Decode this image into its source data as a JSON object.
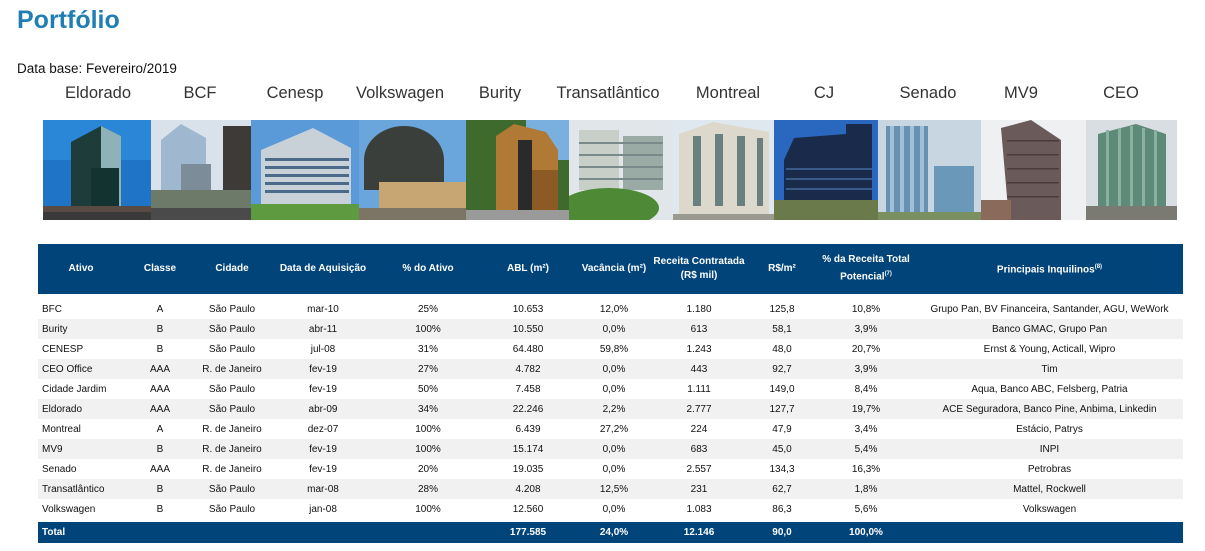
{
  "page": {
    "title": "Portfólio",
    "database_label": "Data base: Fevereiro/2019"
  },
  "buildings": [
    {
      "name": "Eldorado",
      "photo": "eldorado-building-photo"
    },
    {
      "name": "BCF",
      "photo": "bcf-building-photo"
    },
    {
      "name": "Cenesp",
      "photo": "cenesp-building-photo"
    },
    {
      "name": "Volkswagen",
      "photo": "volkswagen-building-photo"
    },
    {
      "name": "Burity",
      "photo": "burity-building-photo"
    },
    {
      "name": "Transatlântico",
      "photo": "transatlantico-building-photo"
    },
    {
      "name": "Montreal",
      "photo": "montreal-building-photo"
    },
    {
      "name": "CJ",
      "photo": "cj-building-photo"
    },
    {
      "name": "Senado",
      "photo": "senado-building-photo"
    },
    {
      "name": "MV9",
      "photo": "mv9-building-photo"
    },
    {
      "name": "CEO",
      "photo": "ceo-building-photo"
    }
  ],
  "table": {
    "headers": {
      "ativo": "Ativo",
      "classe": "Classe",
      "cidade": "Cidade",
      "data_aquisicao": "Data de Aquisição",
      "pct_ativo": "% do Ativo",
      "abl": "ABL (m²)",
      "vacancia": "Vacância (m²)",
      "receita_l1": "Receita Contratada",
      "receita_l2": "(R$ mil)",
      "rs_m2": "R$/m²",
      "pct_receita_l1": "% da Receita Total",
      "pct_receita_l2": "Potencial",
      "pct_receita_note": "(7)",
      "inquilinos": "Principais Inquilinos",
      "inquilinos_note": "(8)"
    },
    "rows": [
      {
        "ativo": "BFC",
        "classe": "A",
        "cidade": "São Paulo",
        "data": "mar-10",
        "pct_ativo": "25%",
        "abl": "10.653",
        "vacancia": "12,0%",
        "receita": "1.180",
        "rs_m2": "125,8",
        "pct_receita": "10,8%",
        "inquilinos": "Grupo Pan, BV Financeira, Santander, AGU, WeWork"
      },
      {
        "ativo": "Burity",
        "classe": "B",
        "cidade": "São Paulo",
        "data": "abr-11",
        "pct_ativo": "100%",
        "abl": "10.550",
        "vacancia": "0,0%",
        "receita": "613",
        "rs_m2": "58,1",
        "pct_receita": "3,9%",
        "inquilinos": "Banco GMAC, Grupo Pan"
      },
      {
        "ativo": "CENESP",
        "classe": "B",
        "cidade": "São Paulo",
        "data": "jul-08",
        "pct_ativo": "31%",
        "abl": "64.480",
        "vacancia": "59,8%",
        "receita": "1.243",
        "rs_m2": "48,0",
        "pct_receita": "20,7%",
        "inquilinos": "Ernst & Young, Acticall, Wipro"
      },
      {
        "ativo": "CEO Office",
        "classe": "AAA",
        "cidade": "R. de Janeiro",
        "data": "fev-19",
        "pct_ativo": "27%",
        "abl": "4.782",
        "vacancia": "0,0%",
        "receita": "443",
        "rs_m2": "92,7",
        "pct_receita": "3,9%",
        "inquilinos": "Tim"
      },
      {
        "ativo": "Cidade Jardim",
        "classe": "AAA",
        "cidade": "São Paulo",
        "data": "fev-19",
        "pct_ativo": "50%",
        "abl": "7.458",
        "vacancia": "0,0%",
        "receita": "1.111",
        "rs_m2": "149,0",
        "pct_receita": "8,4%",
        "inquilinos": "Aqua, Banco ABC, Felsberg, Patria"
      },
      {
        "ativo": "Eldorado",
        "classe": "AAA",
        "cidade": "São Paulo",
        "data": "abr-09",
        "pct_ativo": "34%",
        "abl": "22.246",
        "vacancia": "2,2%",
        "receita": "2.777",
        "rs_m2": "127,7",
        "pct_receita": "19,7%",
        "inquilinos": "ACE Seguradora, Banco Pine, Anbima, Linkedin"
      },
      {
        "ativo": "Montreal",
        "classe": "A",
        "cidade": "R. de Janeiro",
        "data": "dez-07",
        "pct_ativo": "100%",
        "abl": "6.439",
        "vacancia": "27,2%",
        "receita": "224",
        "rs_m2": "47,9",
        "pct_receita": "3,4%",
        "inquilinos": "Estácio, Patrys"
      },
      {
        "ativo": "MV9",
        "classe": "B",
        "cidade": "R. de Janeiro",
        "data": "fev-19",
        "pct_ativo": "100%",
        "abl": "15.174",
        "vacancia": "0,0%",
        "receita": "683",
        "rs_m2": "45,0",
        "pct_receita": "5,4%",
        "inquilinos": "INPI"
      },
      {
        "ativo": "Senado",
        "classe": "AAA",
        "cidade": "R. de Janeiro",
        "data": "fev-19",
        "pct_ativo": "20%",
        "abl": "19.035",
        "vacancia": "0,0%",
        "receita": "2.557",
        "rs_m2": "134,3",
        "pct_receita": "16,3%",
        "inquilinos": "Petrobras"
      },
      {
        "ativo": "Transatlântico",
        "classe": "B",
        "cidade": "São Paulo",
        "data": "mar-08",
        "pct_ativo": "28%",
        "abl": "4.208",
        "vacancia": "12,5%",
        "receita": "231",
        "rs_m2": "62,7",
        "pct_receita": "1,8%",
        "inquilinos": "Mattel, Rockwell"
      },
      {
        "ativo": "Volkswagen",
        "classe": "B",
        "cidade": "São Paulo",
        "data": "jan-08",
        "pct_ativo": "100%",
        "abl": "12.560",
        "vacancia": "0,0%",
        "receita": "1.083",
        "rs_m2": "86,3",
        "pct_receita": "5,6%",
        "inquilinos": "Volkswagen"
      }
    ],
    "total": {
      "label": "Total",
      "abl": "177.585",
      "vacancia": "24,0%",
      "receita": "12.146",
      "rs_m2": "90,0",
      "pct_receita": "100,0%"
    }
  },
  "colors": {
    "title": "#1f7fb5",
    "header_bg": "#004479",
    "stripe": "#f1f1f1"
  }
}
